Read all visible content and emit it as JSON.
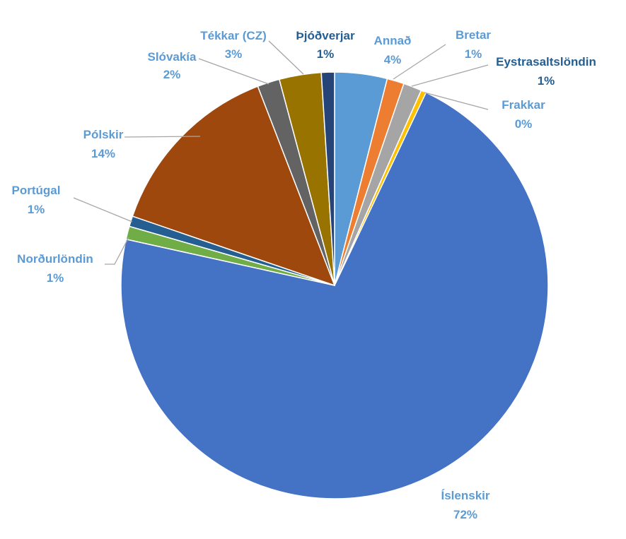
{
  "chart_data": {
    "type": "pie",
    "title": "",
    "legend": "none",
    "slices": [
      {
        "name": "Annað",
        "value": 4,
        "label": "4%",
        "color": "#5B9BD5",
        "label_color": "#5B9BD5"
      },
      {
        "name": "Bretar",
        "value": 1.3,
        "label": "1%",
        "color": "#ED7D31",
        "label_color": "#5B9BD5"
      },
      {
        "name": "Eystrasaltslöndin",
        "value": 1.4,
        "label": "1%",
        "color": "#A5A5A5",
        "label_color": "#255E91"
      },
      {
        "name": "Frakkar",
        "value": 0.4,
        "label": "0%",
        "color": "#FFC000",
        "label_color": "#5B9BD5"
      },
      {
        "name": "Íslenskir",
        "value": 72,
        "label": "72%",
        "color": "#4472C4",
        "label_color": "#5B9BD5"
      },
      {
        "name": "Norðurlöndin",
        "value": 1.0,
        "label": "1%",
        "color": "#70AD47",
        "label_color": "#5B9BD5"
      },
      {
        "name": "Portúgal",
        "value": 0.8,
        "label": "1%",
        "color": "#255E91",
        "label_color": "#5B9BD5"
      },
      {
        "name": "Pólskir",
        "value": 14,
        "label": "14%",
        "color": "#9E480E",
        "label_color": "#5B9BD5"
      },
      {
        "name": "Slóvakía",
        "value": 1.7,
        "label": "2%",
        "color": "#636363",
        "label_color": "#5B9BD5"
      },
      {
        "name": "Tékkar (CZ)",
        "value": 3.2,
        "label": "3%",
        "color": "#997300",
        "label_color": "#5B9BD5"
      },
      {
        "name": "Þjóðverjar",
        "value": 1.0,
        "label": "1%",
        "color": "#264478",
        "label_color": "#255E91"
      }
    ]
  }
}
